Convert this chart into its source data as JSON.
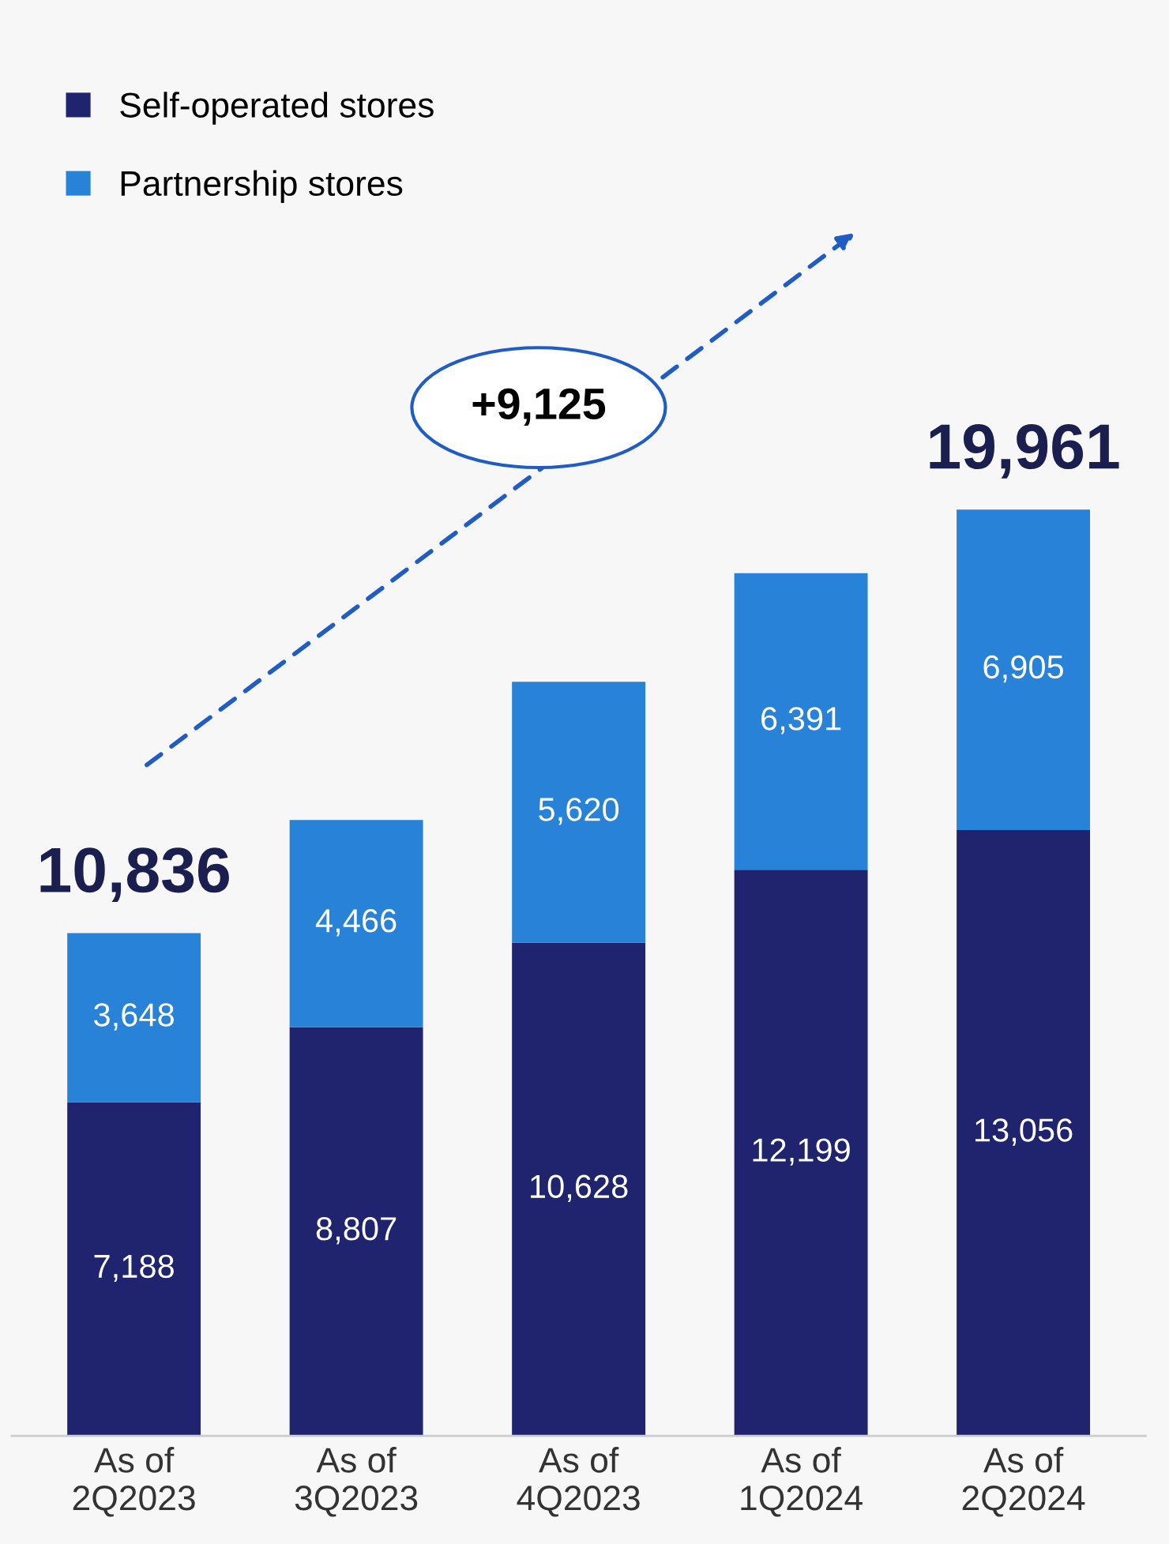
{
  "chart_data": {
    "type": "bar",
    "stacked": true,
    "categories": [
      "As of\n2Q2023",
      "As of\n3Q2023",
      "As of\n4Q2023",
      "As of\n1Q2024",
      "As of\n2Q2024"
    ],
    "series": [
      {
        "name": "Self-operated stores",
        "color": "#20236e",
        "values": [
          7188,
          8807,
          10628,
          12199,
          13056
        ],
        "value_labels": [
          "7,188",
          "8,807",
          "10,628",
          "12,199",
          "13,056"
        ]
      },
      {
        "name": "Partnership stores",
        "color": "#2882d8",
        "values": [
          3648,
          4466,
          5620,
          6391,
          6905
        ],
        "value_labels": [
          "3,648",
          "4,466",
          "5,620",
          "6,391",
          "6,905"
        ]
      }
    ],
    "totals": [
      "10,836",
      null,
      null,
      null,
      "19,961"
    ],
    "annotations": [
      "+9,125"
    ],
    "legend": "top left"
  }
}
